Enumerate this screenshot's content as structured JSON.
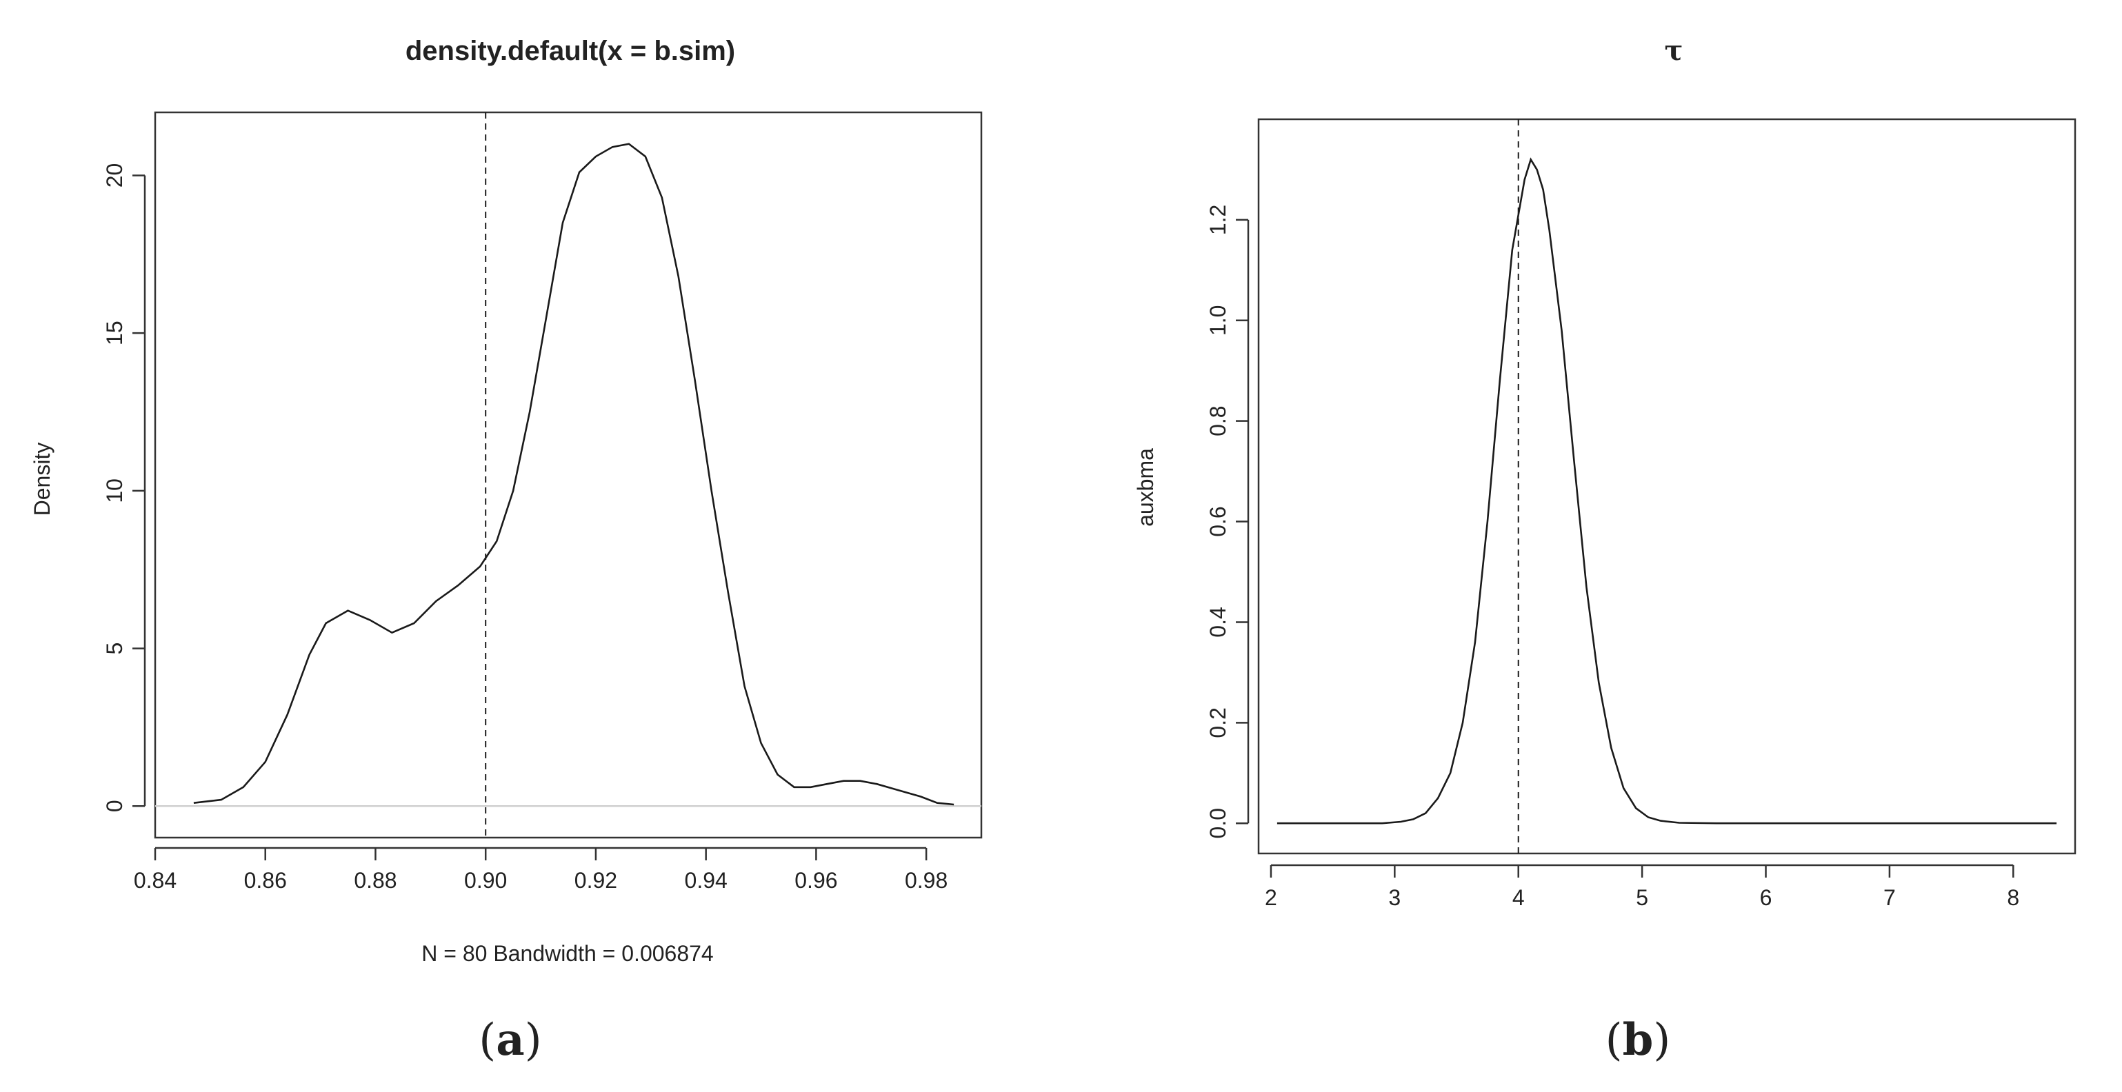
{
  "chart_data": [
    {
      "type": "line",
      "panel": "a",
      "title": "density.default(x = b.sim)",
      "xlabel": "N = 80   Bandwidth = 0.006874",
      "ylabel": "Density",
      "xlim": [
        0.84,
        0.99
      ],
      "ylim": [
        -1,
        22
      ],
      "xticks": [
        "0.84",
        "0.86",
        "0.88",
        "0.90",
        "0.92",
        "0.94",
        "0.96",
        "0.98"
      ],
      "yticks": [
        "0",
        "5",
        "10",
        "15",
        "20"
      ],
      "grid": false,
      "baseline_y": 0,
      "reference_line_x": 0.9,
      "series": [
        {
          "x": [
            0.847,
            0.852,
            0.856,
            0.86,
            0.864,
            0.868,
            0.871,
            0.875,
            0.879,
            0.883,
            0.887,
            0.891,
            0.895,
            0.899,
            0.902,
            0.905,
            0.908,
            0.911,
            0.914,
            0.917,
            0.92,
            0.923,
            0.926,
            0.929,
            0.932,
            0.935,
            0.938,
            0.941,
            0.944,
            0.947,
            0.95,
            0.953,
            0.956,
            0.959,
            0.962,
            0.965,
            0.968,
            0.971,
            0.975,
            0.979,
            0.982,
            0.985
          ],
          "y": [
            0.1,
            0.2,
            0.6,
            1.4,
            2.9,
            4.8,
            5.8,
            6.2,
            5.9,
            5.5,
            5.8,
            6.5,
            7.0,
            7.6,
            8.4,
            10.0,
            12.5,
            15.5,
            18.5,
            20.1,
            20.6,
            20.9,
            21.0,
            20.6,
            19.3,
            16.8,
            13.5,
            10.0,
            6.8,
            3.8,
            2.0,
            1.0,
            0.6,
            0.6,
            0.7,
            0.8,
            0.8,
            0.7,
            0.5,
            0.3,
            0.1,
            0.05
          ]
        }
      ]
    },
    {
      "type": "line",
      "panel": "b",
      "title": "τ",
      "xlabel": "",
      "ylabel": "auxbma",
      "xlim": [
        1.9,
        8.5
      ],
      "ylim": [
        -0.06,
        1.4
      ],
      "xticks": [
        "2",
        "3",
        "4",
        "5",
        "6",
        "7",
        "8"
      ],
      "yticks": [
        "0.0",
        "0.2",
        "0.4",
        "0.6",
        "0.8",
        "1.0",
        "1.2"
      ],
      "grid": false,
      "reference_line_x": 4,
      "series": [
        {
          "x": [
            2.05,
            2.5,
            2.9,
            3.05,
            3.15,
            3.25,
            3.35,
            3.45,
            3.55,
            3.65,
            3.75,
            3.85,
            3.95,
            4.05,
            4.1,
            4.15,
            4.2,
            4.25,
            4.35,
            4.45,
            4.55,
            4.65,
            4.75,
            4.85,
            4.95,
            5.05,
            5.15,
            5.3,
            5.6,
            6.0,
            7.0,
            8.35
          ],
          "y": [
            0.0,
            0.0,
            0.0,
            0.003,
            0.008,
            0.02,
            0.05,
            0.1,
            0.2,
            0.36,
            0.6,
            0.88,
            1.14,
            1.28,
            1.32,
            1.3,
            1.26,
            1.18,
            0.98,
            0.72,
            0.47,
            0.28,
            0.15,
            0.07,
            0.03,
            0.012,
            0.005,
            0.001,
            0.0,
            0.0,
            0.0,
            0.0
          ]
        }
      ]
    }
  ],
  "labels": {
    "panel_a": {
      "open": "(",
      "letter": "a",
      "close": ")"
    },
    "panel_b": {
      "open": "(",
      "letter": "b",
      "close": ")"
    }
  },
  "colors": {
    "line": "#1a1a1a",
    "baseline": "#cfcfcf",
    "frame": "#333333"
  }
}
